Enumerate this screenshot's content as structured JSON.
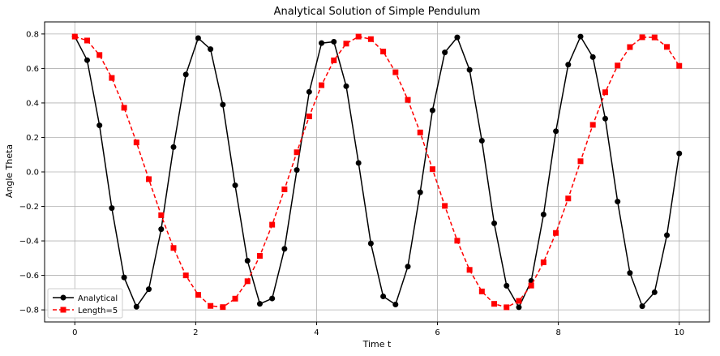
{
  "chart_data": {
    "type": "line",
    "title": "Analytical Solution of Simple Pendulum",
    "xlabel": "Time t",
    "ylabel": "Angle Theta",
    "xlim": [
      -0.5,
      10.5
    ],
    "ylim": [
      -0.87,
      0.87
    ],
    "xticks": [
      0,
      2,
      4,
      6,
      8,
      10
    ],
    "xtick_labels": [
      "0",
      "2",
      "4",
      "6",
      "8",
      "10"
    ],
    "yticks": [
      -0.8,
      -0.6,
      -0.4,
      -0.2,
      0.0,
      0.2,
      0.4,
      0.6,
      0.8
    ],
    "ytick_labels": [
      "−0.8",
      "−0.6",
      "−0.4",
      "−0.2",
      "0.0",
      "0.2",
      "0.4",
      "0.6",
      "0.8"
    ],
    "grid": true,
    "legend_position": "lower-left",
    "series": [
      {
        "name": "Analytical",
        "color": "#000000",
        "marker": "circle",
        "linestyle": "solid",
        "x": [
          0,
          0.204,
          0.408,
          0.612,
          0.816,
          1.02,
          1.224,
          1.429,
          1.633,
          1.837,
          2.041,
          2.245,
          2.449,
          2.653,
          2.857,
          3.061,
          3.265,
          3.469,
          3.673,
          3.878,
          4.082,
          4.286,
          4.49,
          4.694,
          4.898,
          5.102,
          5.306,
          5.51,
          5.714,
          5.918,
          6.122,
          6.327,
          6.531,
          6.735,
          6.939,
          7.143,
          7.347,
          7.551,
          7.755,
          7.959,
          8.163,
          8.367,
          8.571,
          8.776,
          8.98,
          9.184,
          9.388,
          9.592,
          9.796,
          10.0
        ],
        "y": [
          0.785,
          0.648,
          0.27,
          -0.21,
          -0.612,
          -0.782,
          -0.68,
          -0.332,
          0.144,
          0.565,
          0.776,
          0.712,
          0.39,
          -0.078,
          -0.515,
          -0.765,
          -0.734,
          -0.446,
          0.011,
          0.464,
          0.747,
          0.755,
          0.497,
          0.052,
          -0.415,
          -0.722,
          -0.769,
          -0.549,
          -0.118,
          0.357,
          0.693,
          0.78,
          0.592,
          0.181,
          -0.298,
          -0.66,
          -0.785,
          -0.632,
          -0.247,
          0.236,
          0.622,
          0.785,
          0.666,
          0.309,
          -0.172,
          -0.586,
          -0.779,
          -0.698,
          -0.367,
          0.107
        ]
      },
      {
        "name": "Length=5",
        "color": "#ff0000",
        "marker": "square",
        "linestyle": "dashed",
        "x": [
          0,
          0.204,
          0.408,
          0.612,
          0.816,
          1.02,
          1.224,
          1.429,
          1.633,
          1.837,
          2.041,
          2.245,
          2.449,
          2.653,
          2.857,
          3.061,
          3.265,
          3.469,
          3.673,
          3.878,
          4.082,
          4.286,
          4.49,
          4.694,
          4.898,
          5.102,
          5.306,
          5.51,
          5.714,
          5.918,
          6.122,
          6.327,
          6.531,
          6.735,
          6.939,
          7.143,
          7.347,
          7.551,
          7.755,
          7.959,
          8.163,
          8.367,
          8.571,
          8.776,
          8.98,
          9.184,
          9.388,
          9.592,
          9.796,
          10.0
        ],
        "y": [
          0.785,
          0.762,
          0.678,
          0.545,
          0.372,
          0.171,
          -0.042,
          -0.251,
          -0.441,
          -0.6,
          -0.713,
          -0.777,
          -0.784,
          -0.735,
          -0.634,
          -0.487,
          -0.306,
          -0.101,
          0.114,
          0.322,
          0.503,
          0.647,
          0.744,
          0.785,
          0.77,
          0.698,
          0.578,
          0.418,
          0.229,
          0.016,
          -0.197,
          -0.399,
          -0.568,
          -0.693,
          -0.765,
          -0.785,
          -0.748,
          -0.659,
          -0.524,
          -0.354,
          -0.154,
          0.062,
          0.273,
          0.462,
          0.617,
          0.724,
          0.781,
          0.78,
          0.725,
          0.615
        ]
      }
    ]
  }
}
